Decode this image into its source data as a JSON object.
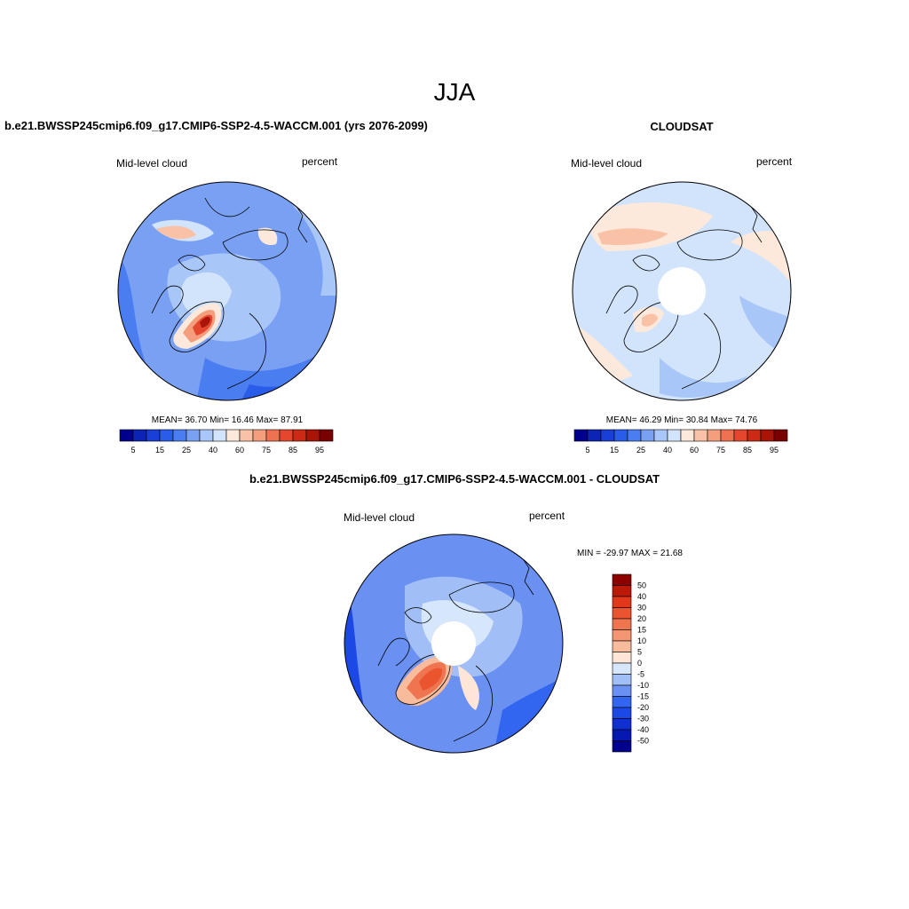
{
  "figure": {
    "title": "JJA",
    "panels": [
      {
        "title": "b.e21.BWSSP245cmip6.f09_g17.CMIP6-SSP2-4.5-WACCM.001 (yrs 2076-2099)",
        "left_label": "Mid-level cloud",
        "right_label": "percent",
        "stats": "MEAN=  36.70  Min=  16.46  Max=  87.91",
        "polar_hole": false
      },
      {
        "title": "CLOUDSAT",
        "left_label": "Mid-level cloud",
        "right_label": "percent",
        "stats": "MEAN=  46.29  Min=  30.84  Max=  74.76",
        "polar_hole": true
      },
      {
        "title": "b.e21.BWSSP245cmip6.f09_g17.CMIP6-SSP2-4.5-WACCM.001 - CLOUDSAT",
        "left_label": "Mid-level cloud",
        "right_label": "percent",
        "stats": "MIN = -29.97 MAX =  21.68",
        "polar_hole": true
      }
    ]
  },
  "colorbar_h": {
    "colors": [
      "#00008c",
      "#0b24b4",
      "#1a3fd6",
      "#2a5cea",
      "#4a7df0",
      "#7aa0f4",
      "#a9c6f8",
      "#d2e4fb",
      "#fde9dc",
      "#f9c2a6",
      "#f49e7d",
      "#ee7152",
      "#e3472d",
      "#cc2a14",
      "#a81508",
      "#7a0000"
    ],
    "ticks": [
      "5",
      "15",
      "25",
      "40",
      "60",
      "75",
      "85",
      "95"
    ]
  },
  "colorbar_v": {
    "colors": [
      "#00008c",
      "#0519b0",
      "#0f2fd0",
      "#1c48e6",
      "#3366f0",
      "#6a90f2",
      "#a2bef6",
      "#d6e6fb",
      "#fde6d8",
      "#f8bb9b",
      "#f39673",
      "#ef7450",
      "#ea5530",
      "#e0381a",
      "#bb1a08",
      "#8c0000"
    ],
    "ticks": [
      "-50",
      "-40",
      "-30",
      "-20",
      "-15",
      "-10",
      "-5",
      "0",
      "5",
      "10",
      "15",
      "20",
      "30",
      "40",
      "50"
    ]
  }
}
